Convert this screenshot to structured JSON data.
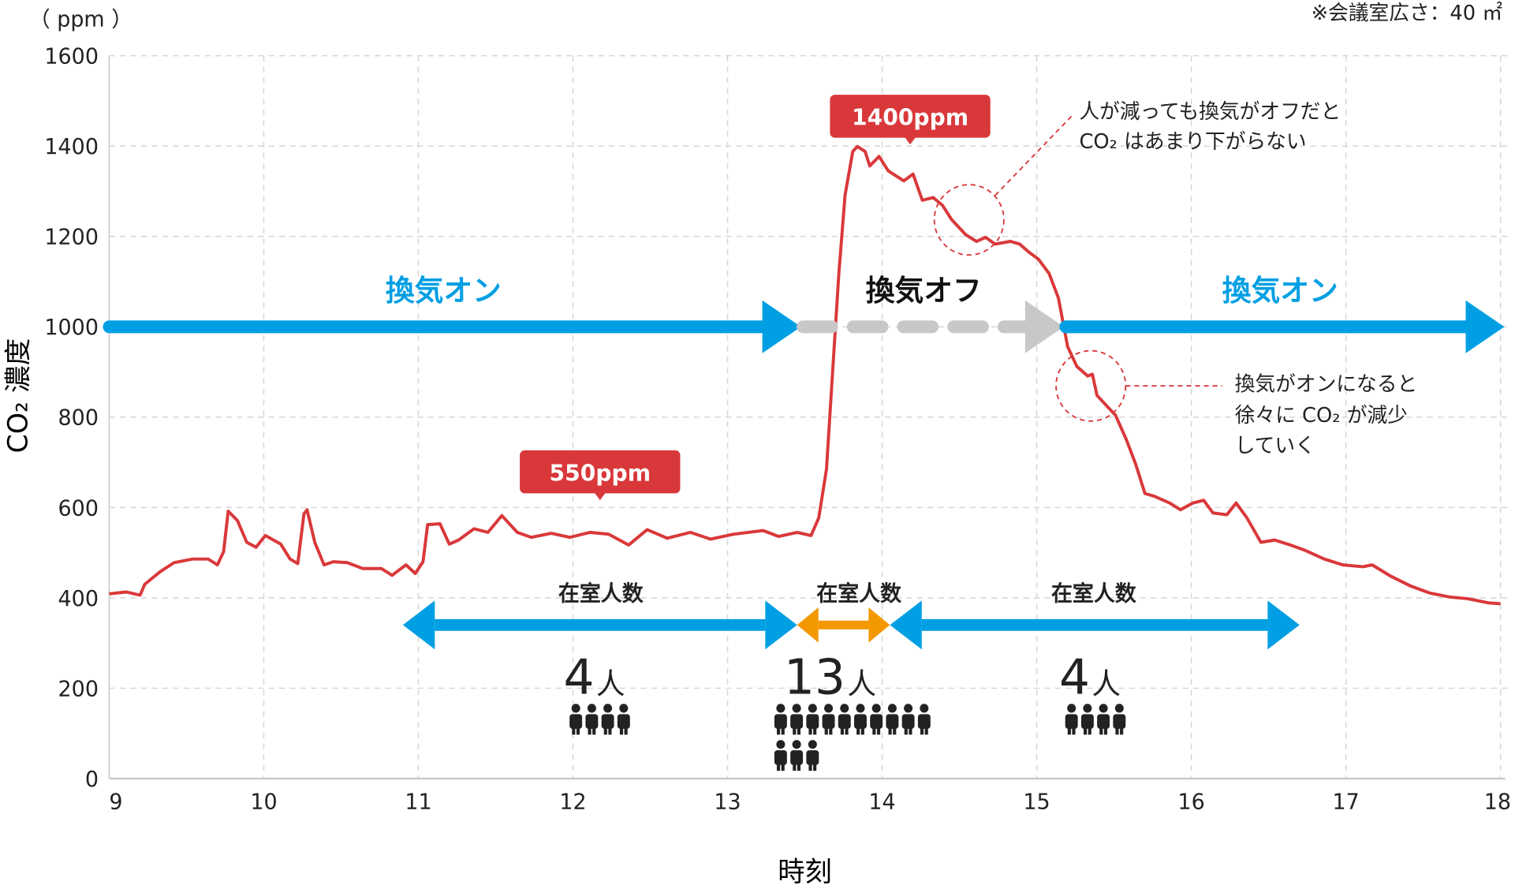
{
  "chart_data": {
    "type": "line",
    "title": "",
    "unit_label": "（ ppm ）",
    "note": "※会議室広さ：40 ㎡",
    "xlabel": "時刻",
    "ylabel": "CO₂ 濃度",
    "xlim": [
      9,
      18
    ],
    "ylim": [
      0,
      1600
    ],
    "xticks": [
      "9",
      "10",
      "11",
      "12",
      "13",
      "14",
      "15",
      "16",
      "17",
      "18"
    ],
    "yticks": [
      "0",
      "200",
      "400",
      "600",
      "800",
      "1000",
      "1200",
      "1400",
      "1600"
    ],
    "grid": true,
    "colors": {
      "line": "#d9383a",
      "vent_on": "#009fe3",
      "vent_off": "#c8c8c8",
      "occ": "#009fe3",
      "occ_peak": "#f39800",
      "badge": "#d9383a"
    },
    "series": [
      {
        "name": "CO2",
        "x": [
          9.0,
          9.11,
          9.2,
          9.23,
          9.33,
          9.42,
          9.54,
          9.64,
          9.7,
          9.74,
          9.77,
          9.83,
          9.89,
          9.95,
          10.01,
          10.11,
          10.17,
          10.22,
          10.26,
          10.28,
          10.33,
          10.39,
          10.45,
          10.54,
          10.64,
          10.76,
          10.83,
          10.92,
          10.98,
          11.03,
          11.06,
          11.14,
          11.2,
          11.26,
          11.36,
          11.45,
          11.54,
          11.64,
          11.73,
          11.86,
          11.98,
          12.11,
          12.23,
          12.36,
          12.48,
          12.61,
          12.76,
          12.89,
          13.04,
          13.23,
          13.33,
          13.45,
          13.54,
          13.59,
          13.64,
          13.68,
          13.72,
          13.76,
          13.81,
          13.84,
          13.89,
          13.92,
          13.98,
          14.04,
          14.14,
          14.2,
          14.26,
          14.33,
          14.39,
          14.45,
          14.54,
          14.61,
          14.67,
          14.73,
          14.83,
          14.89,
          14.95,
          15.01,
          15.08,
          15.14,
          15.17,
          15.2,
          15.26,
          15.33,
          15.36,
          15.39,
          15.45,
          15.51,
          15.58,
          15.64,
          15.7,
          15.76,
          15.86,
          15.93,
          16.01,
          16.08,
          16.14,
          16.23,
          16.29,
          16.36,
          16.45,
          16.54,
          16.64,
          16.73,
          16.86,
          16.98,
          17.11,
          17.17,
          17.29,
          17.42,
          17.54,
          17.67,
          17.79,
          17.92,
          18.0
        ],
        "y": [
          409,
          413,
          406,
          430,
          458,
          478,
          486,
          486,
          473,
          502,
          592,
          571,
          523,
          512,
          538,
          519,
          486,
          476,
          586,
          595,
          523,
          473,
          480,
          478,
          465,
          465,
          450,
          473,
          454,
          480,
          562,
          564,
          519,
          528,
          553,
          545,
          582,
          545,
          534,
          543,
          534,
          545,
          541,
          517,
          551,
          532,
          545,
          530,
          541,
          549,
          536,
          545,
          538,
          577,
          685,
          902,
          1118,
          1291,
          1388,
          1399,
          1388,
          1356,
          1377,
          1345,
          1323,
          1338,
          1280,
          1286,
          1269,
          1237,
          1204,
          1189,
          1198,
          1183,
          1189,
          1183,
          1165,
          1150,
          1118,
          1064,
          1010,
          956,
          912,
          891,
          895,
          848,
          826,
          804,
          750,
          696,
          631,
          625,
          610,
          595,
          610,
          616,
          588,
          584,
          610,
          577,
          523,
          528,
          517,
          506,
          486,
          473,
          469,
          473,
          448,
          426,
          411,
          402,
          398,
          389,
          387
        ]
      }
    ],
    "ventilation": [
      {
        "label": "換気オン",
        "state": "on",
        "from": 9,
        "to": 13.45,
        "level": 1000
      },
      {
        "label": "換気オフ",
        "state": "off",
        "from": 13.45,
        "to": 15.15,
        "level": 1000
      },
      {
        "label": "換気オン",
        "state": "on",
        "from": 15.15,
        "to": 18,
        "level": 1000
      }
    ],
    "occupancy": [
      {
        "label": "在室人数",
        "count": "4",
        "unit": "人",
        "people": 4,
        "from": 10.9,
        "to": 13.45,
        "peak": false
      },
      {
        "label": "在室人数",
        "count": "13",
        "unit": "人",
        "people": 13,
        "from": 13.45,
        "to": 14.05,
        "peak": true
      },
      {
        "label": "在室人数",
        "count": "4",
        "unit": "人",
        "people": 4,
        "from": 14.05,
        "to": 16.7,
        "peak": false
      }
    ],
    "badges": [
      {
        "text": "1400ppm",
        "x": 14.2,
        "value": 1400
      },
      {
        "text": "550ppm",
        "x": 12.2,
        "value": 550
      }
    ],
    "annotations": [
      {
        "lines": [
          "人が減っても換気がオフだと",
          "CO₂ はあまり下がらない"
        ]
      },
      {
        "lines": [
          "換気がオンになると",
          "徐々に CO₂ が減少",
          "していく"
        ]
      }
    ]
  }
}
